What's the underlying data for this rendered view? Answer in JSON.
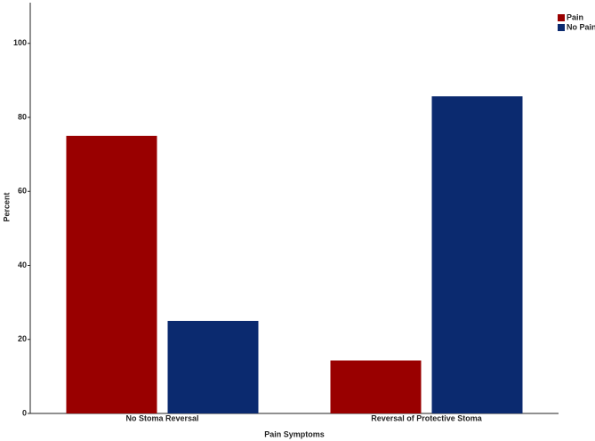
{
  "chart_data": {
    "type": "bar",
    "x_label": "Pain Symptoms",
    "y_label": "Percent",
    "categories": [
      "No Stoma Reversal",
      "Reversal of Protective Stoma"
    ],
    "series": [
      {
        "name": "Pain",
        "color": "#990000",
        "values": [
          75,
          14.3
        ]
      },
      {
        "name": "No Pain",
        "color": "#0b2a6f",
        "values": [
          25,
          85.7
        ]
      }
    ],
    "ylim": [
      0,
      111
    ],
    "yticks": [
      0,
      20,
      40,
      60,
      80,
      100
    ],
    "grid": false,
    "legend": "top-right"
  }
}
